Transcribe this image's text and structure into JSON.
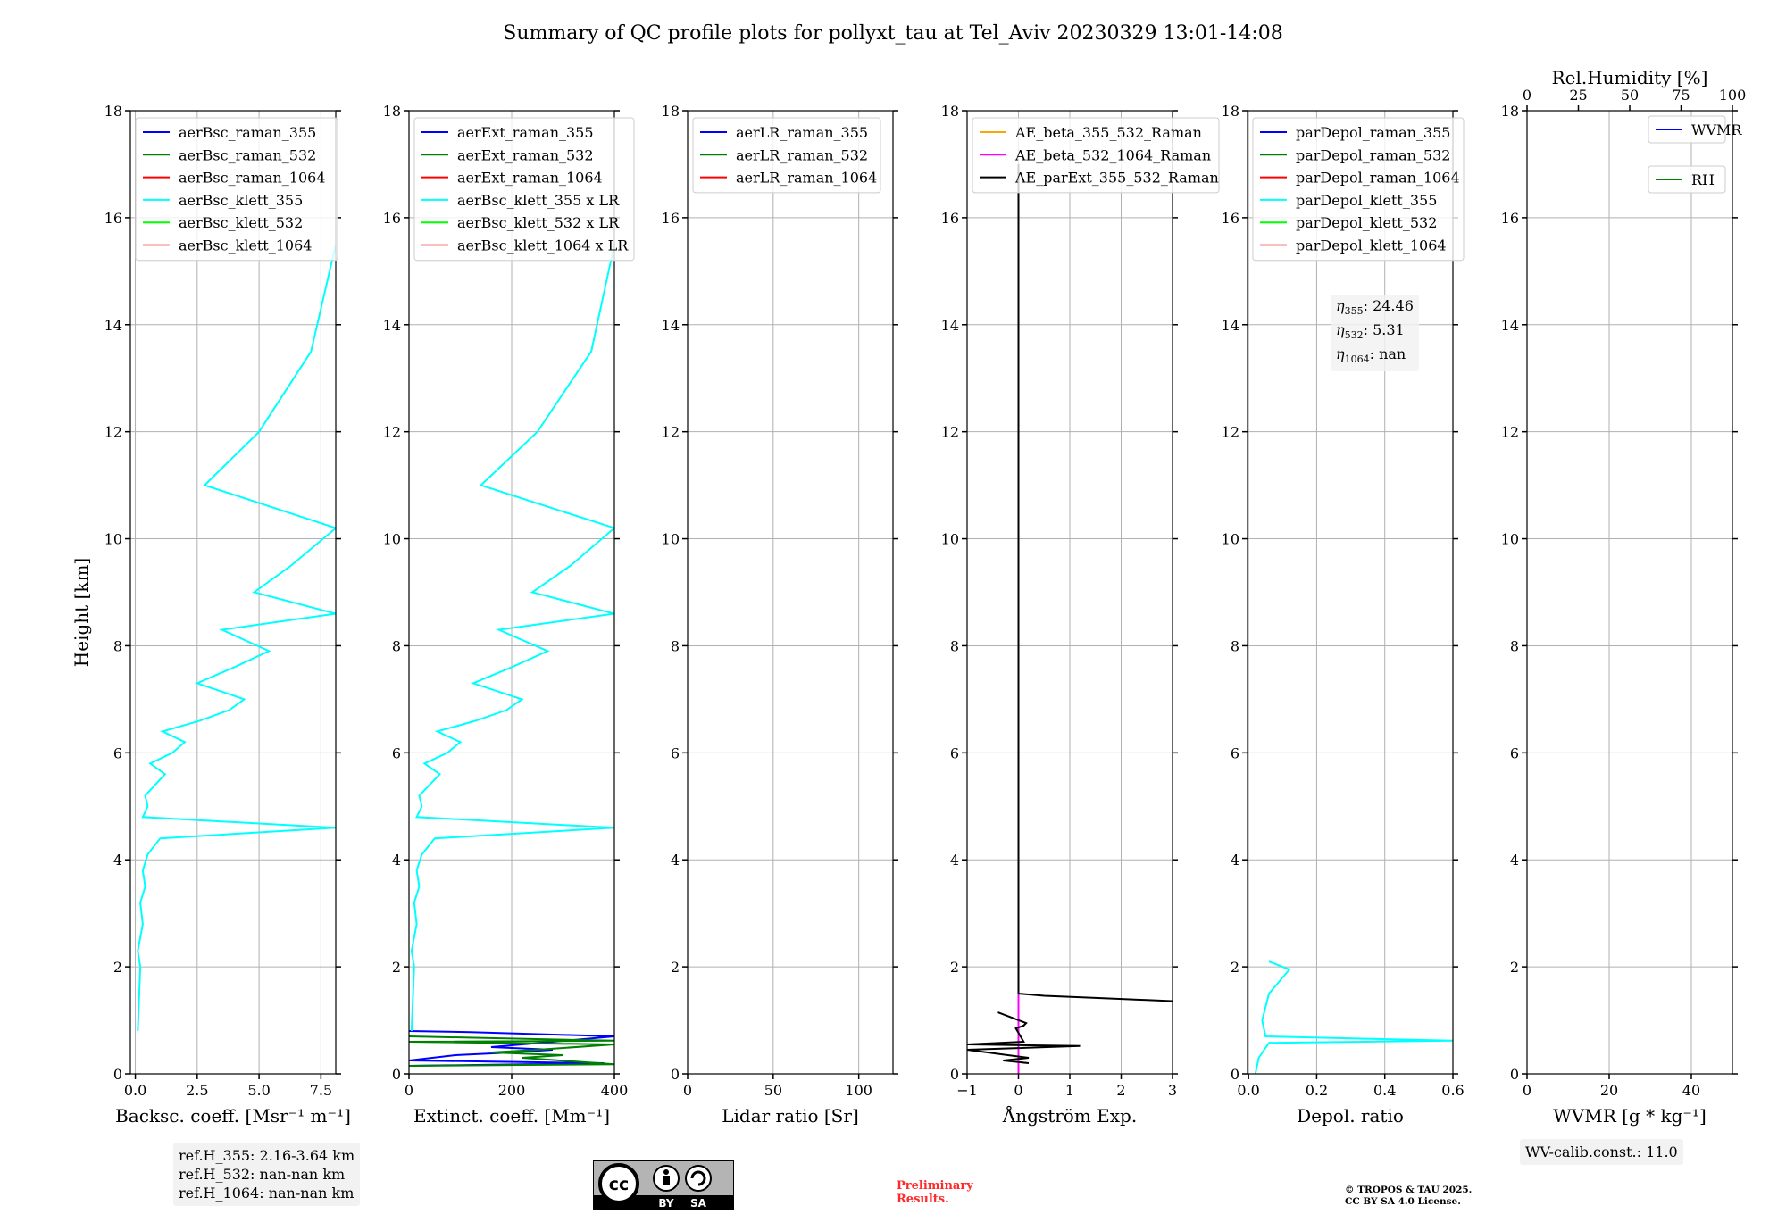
{
  "title": "Summary of QC profile plots for pollyxt_tau at Tel_Aviv 20230329 13:01-14:08",
  "ylabel": "Height [km]",
  "chart_data": [
    {
      "type": "line",
      "xlabel": "Backsc. coeff. [Msr⁻¹ m⁻¹]",
      "xlim": [
        -0.2,
        8.1
      ],
      "xticks": [
        0.0,
        2.5,
        5.0,
        7.5
      ],
      "xtick_labels": [
        "0.0",
        "2.5",
        "5.0",
        "7.5"
      ],
      "ylim": [
        0,
        18
      ],
      "yticks": [
        0,
        2,
        4,
        6,
        8,
        10,
        12,
        14,
        16,
        18
      ],
      "grid": true,
      "legend_position": "top-left",
      "series": [
        {
          "name": "aerBsc_raman_355",
          "color": "#0000ff",
          "x": [],
          "y": []
        },
        {
          "name": "aerBsc_raman_532",
          "color": "#008000",
          "x": [],
          "y": []
        },
        {
          "name": "aerBsc_raman_1064",
          "color": "#ff0000",
          "x": [],
          "y": []
        },
        {
          "name": "aerBsc_klett_355",
          "color": "#00ffff",
          "x": [
            0.1,
            0.2,
            0.1,
            0.3,
            0.2,
            0.4,
            0.3,
            0.5,
            1.0,
            8.1,
            0.3,
            0.5,
            0.4,
            0.8,
            1.2,
            0.6,
            1.5,
            2.0,
            1.1,
            2.6,
            3.8,
            4.4,
            2.5,
            4.0,
            5.4,
            3.5,
            8.1,
            4.8,
            6.3,
            8.1,
            2.8,
            5.0,
            7.1,
            8.1
          ],
          "y": [
            0.8,
            2.0,
            2.3,
            2.8,
            3.2,
            3.5,
            3.8,
            4.1,
            4.4,
            4.6,
            4.8,
            5.0,
            5.2,
            5.4,
            5.6,
            5.8,
            6.0,
            6.2,
            6.4,
            6.6,
            6.8,
            7.0,
            7.3,
            7.6,
            7.9,
            8.3,
            8.6,
            9.0,
            9.5,
            10.2,
            11.0,
            12.0,
            13.5,
            15.5
          ]
        },
        {
          "name": "aerBsc_klett_532",
          "color": "#00ff00",
          "x": [],
          "y": []
        },
        {
          "name": "aerBsc_klett_1064",
          "color": "#f08080",
          "x": [],
          "y": []
        }
      ]
    },
    {
      "type": "line",
      "xlabel": "Extinct. coeff. [Mm⁻¹]",
      "xlim": [
        0,
        400
      ],
      "xticks": [
        0,
        200,
        400
      ],
      "xtick_labels": [
        "0",
        "200",
        "400"
      ],
      "ylim": [
        0,
        18
      ],
      "yticks": [
        0,
        2,
        4,
        6,
        8,
        10,
        12,
        14,
        16,
        18
      ],
      "grid": true,
      "legend_position": "top-left",
      "series": [
        {
          "name": "aerExt_raman_355",
          "color": "#0000ff",
          "x": [
            0,
            380,
            0,
            90,
            200,
            280,
            160,
            400,
            120,
            0
          ],
          "y": [
            0.15,
            0.2,
            0.25,
            0.35,
            0.4,
            0.45,
            0.5,
            0.7,
            0.78,
            0.8
          ]
        },
        {
          "name": "aerExt_raman_532",
          "color": "#008000",
          "x": [
            0,
            400,
            220,
            300,
            160,
            250,
            400,
            0,
            400,
            0
          ],
          "y": [
            0.15,
            0.18,
            0.3,
            0.35,
            0.4,
            0.45,
            0.55,
            0.6,
            0.62,
            0.7
          ]
        },
        {
          "name": "aerExt_raman_1064",
          "color": "#ff0000",
          "x": [],
          "y": []
        },
        {
          "name": "aerBsc_klett_355 x LR",
          "color": "#00ffff",
          "x": [
            5,
            10,
            5,
            15,
            10,
            20,
            15,
            25,
            50,
            400,
            15,
            25,
            20,
            40,
            60,
            30,
            75,
            100,
            55,
            130,
            190,
            220,
            125,
            200,
            270,
            175,
            400,
            240,
            315,
            400,
            140,
            250,
            355,
            400
          ],
          "y": [
            0.8,
            2.0,
            2.3,
            2.8,
            3.2,
            3.5,
            3.8,
            4.1,
            4.4,
            4.6,
            4.8,
            5.0,
            5.2,
            5.4,
            5.6,
            5.8,
            6.0,
            6.2,
            6.4,
            6.6,
            6.8,
            7.0,
            7.3,
            7.6,
            7.9,
            8.3,
            8.6,
            9.0,
            9.5,
            10.2,
            11.0,
            12.0,
            13.5,
            15.5
          ]
        },
        {
          "name": "aerBsc_klett_532 x LR",
          "color": "#00ff00",
          "x": [],
          "y": []
        },
        {
          "name": "aerBsc_klett_1064 x LR",
          "color": "#f08080",
          "x": [],
          "y": []
        }
      ]
    },
    {
      "type": "line",
      "xlabel": "Lidar ratio [Sr]",
      "xlim": [
        0,
        120
      ],
      "xticks": [
        0,
        50,
        100
      ],
      "xtick_labels": [
        "0",
        "50",
        "100"
      ],
      "ylim": [
        0,
        18
      ],
      "yticks": [
        0,
        2,
        4,
        6,
        8,
        10,
        12,
        14,
        16,
        18
      ],
      "grid": true,
      "legend_position": "top-left",
      "series": [
        {
          "name": "aerLR_raman_355",
          "color": "#0000ff",
          "x": [],
          "y": []
        },
        {
          "name": "aerLR_raman_532",
          "color": "#008000",
          "x": [],
          "y": []
        },
        {
          "name": "aerLR_raman_1064",
          "color": "#ff0000",
          "x": [],
          "y": []
        }
      ]
    },
    {
      "type": "line",
      "xlabel": "Ångström Exp.",
      "xlim": [
        -1,
        3
      ],
      "xticks": [
        -1,
        0,
        1,
        2,
        3
      ],
      "xtick_labels": [
        "−1",
        "0",
        "1",
        "2",
        "3"
      ],
      "ylim": [
        0,
        18
      ],
      "yticks": [
        0,
        2,
        4,
        6,
        8,
        10,
        12,
        14,
        16,
        18
      ],
      "grid": true,
      "legend_position": "top-left",
      "series": [
        {
          "name": "AE_beta_355_532_Raman",
          "color": "#ffa500",
          "x": [],
          "y": []
        },
        {
          "name": "AE_beta_532_1064_Raman",
          "color": "#ff00ff",
          "x": [
            0,
            0
          ],
          "y": [
            0,
            1.5
          ]
        },
        {
          "name": "AE_parExt_355_532_Raman",
          "color": "#000000",
          "x": [
            -0.4,
            0.15,
            0.1,
            -0.05,
            0.1,
            -1,
            1.2,
            -1,
            0.2,
            -0.3,
            0.2
          ],
          "y": [
            1.15,
            0.95,
            0.9,
            0.85,
            0.6,
            0.55,
            0.52,
            0.45,
            0.3,
            0.25,
            0.2
          ]
        },
        {
          "name": "AE_parExt_355_532_Raman",
          "color": "#000000",
          "x": [
            0,
            0,
            0.5,
            1.5,
            2.5,
            3
          ],
          "y": [
            17,
            1.5,
            1.46,
            1.42,
            1.38,
            1.36
          ]
        }
      ]
    },
    {
      "type": "line",
      "xlabel": "Depol. ratio",
      "xlim": [
        -0.003,
        0.6
      ],
      "xticks": [
        0.0,
        0.2,
        0.4,
        0.6
      ],
      "xtick_labels": [
        "0.0",
        "0.2",
        "0.4",
        "0.6"
      ],
      "ylim": [
        0,
        18
      ],
      "yticks": [
        0,
        2,
        4,
        6,
        8,
        10,
        12,
        14,
        16,
        18
      ],
      "grid": true,
      "legend_position": "top-left",
      "series": [
        {
          "name": "parDepol_raman_355",
          "color": "#0000ff",
          "x": [],
          "y": []
        },
        {
          "name": "parDepol_raman_532",
          "color": "#008000",
          "x": [],
          "y": []
        },
        {
          "name": "parDepol_raman_1064",
          "color": "#ff0000",
          "x": [],
          "y": []
        },
        {
          "name": "parDepol_klett_355",
          "color": "#00ffff",
          "x": [
            0.02,
            0.03,
            0.06,
            0.6,
            0.05,
            0.04,
            0.06,
            0.12,
            0.08,
            0.06
          ],
          "y": [
            0.0,
            0.3,
            0.58,
            0.62,
            0.7,
            1.0,
            1.5,
            1.95,
            2.05,
            2.1
          ]
        },
        {
          "name": "parDepol_klett_532",
          "color": "#00ff00",
          "x": [],
          "y": []
        },
        {
          "name": "parDepol_klett_1064",
          "color": "#f08080",
          "x": [],
          "y": []
        }
      ]
    },
    {
      "type": "line",
      "xlabel": "WVMR [g * kg⁻¹]",
      "xlim": [
        0,
        50
      ],
      "xticks": [
        0,
        20,
        40
      ],
      "xtick_labels": [
        "0",
        "20",
        "40"
      ],
      "top_xlabel": "Rel.Humidity [%]",
      "top_xlim": [
        0,
        100
      ],
      "top_xticks": [
        0,
        25,
        50,
        75,
        100
      ],
      "top_xtick_labels": [
        "0",
        "25",
        "50",
        "75",
        "100"
      ],
      "ylim": [
        0,
        18
      ],
      "yticks": [
        0,
        2,
        4,
        6,
        8,
        10,
        12,
        14,
        16,
        18
      ],
      "grid": true,
      "legend_position": "top-right",
      "series": [
        {
          "name": "WVMR",
          "color": "#0000ff",
          "x": [],
          "y": []
        },
        {
          "name": "RH",
          "color": "#008000",
          "x": [],
          "y": []
        }
      ]
    }
  ],
  "annotations": {
    "ref_heights": [
      "ref.H_355: 2.16-3.64 km",
      "ref.H_532: nan-nan km",
      "ref.H_1064: nan-nan km"
    ],
    "eta": [
      {
        "symbol": "η",
        "sub": "355",
        "value": ": 24.46"
      },
      {
        "symbol": "η",
        "sub": "532",
        "value": ": 5.31"
      },
      {
        "symbol": "η",
        "sub": "1064",
        "value": ": nan"
      }
    ],
    "wv_calib": "WV-calib.const.: 11.0",
    "cc_labels": [
      "BY",
      "SA"
    ],
    "preliminary": [
      "Preliminary",
      "Results."
    ],
    "copyright": [
      "© TROPOS & TAU 2025.",
      "CC BY SA 4.0 License."
    ]
  }
}
